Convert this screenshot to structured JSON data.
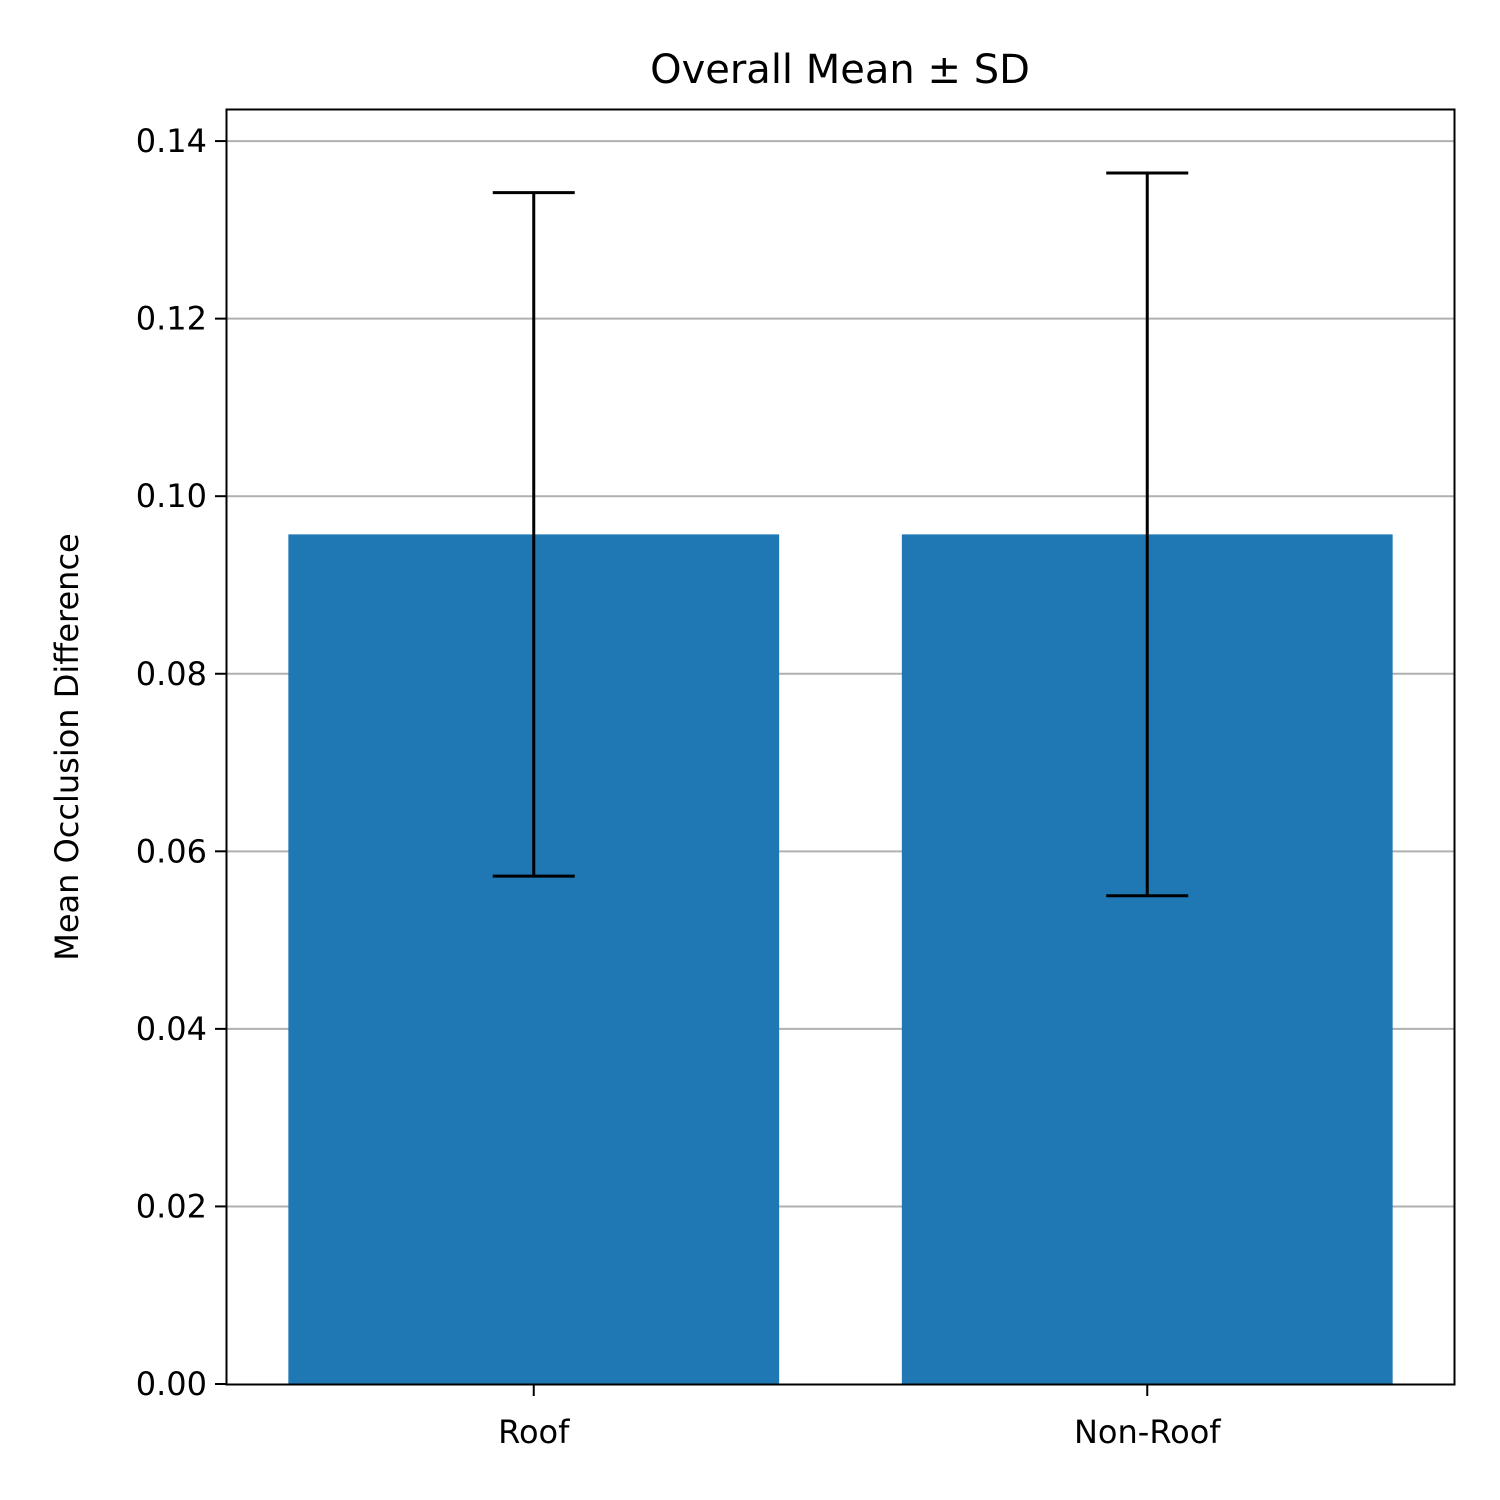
{
  "chart_data": {
    "type": "bar",
    "title": "Overall Mean ± SD",
    "xlabel": "",
    "ylabel": "Mean Occlusion Difference",
    "categories": [
      "Roof",
      "Non-Roof"
    ],
    "values": [
      0.0957,
      0.0957
    ],
    "error_sd": [
      0.0385,
      0.0407
    ],
    "ylim": [
      0,
      0.1435
    ],
    "yticks": [
      0.0,
      0.02,
      0.04,
      0.06,
      0.08,
      0.1,
      0.12,
      0.14
    ],
    "ytick_labels": [
      "0.00",
      "0.02",
      "0.04",
      "0.06",
      "0.08",
      "0.10",
      "0.12",
      "0.14"
    ],
    "grid": "horizontal",
    "colors": {
      "bar": "#1f77b4",
      "grid": "#b0b0b0",
      "error_bar": "#000000"
    }
  }
}
